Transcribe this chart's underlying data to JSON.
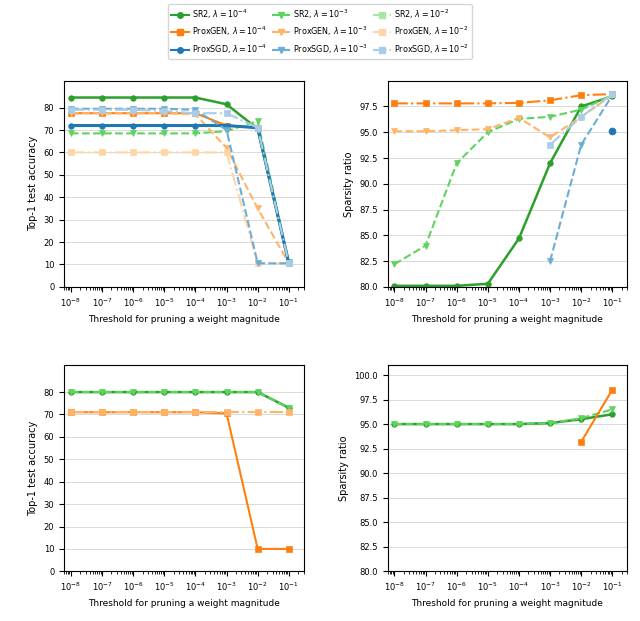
{
  "thresholds": [
    1e-08,
    1e-07,
    1e-06,
    1e-05,
    0.0001,
    0.001,
    0.01,
    0.1
  ],
  "colors": {
    "SR2_1e-4": "#2ca02c",
    "SR2_1e-3": "#5fd35f",
    "SR2_1e-2": "#a8e6a8",
    "ProxGEN_1e-4": "#ff7f0e",
    "ProxGEN_1e-3": "#ffb46a",
    "ProxGEN_1e-2": "#ffd4a8",
    "ProxSGD_1e-4": "#1f77b4",
    "ProxSGD_1e-3": "#6aaed6",
    "ProxSGD_1e-2": "#a8cde8"
  },
  "top1_upper": {
    "SR2_1e-4": [
      84.5,
      84.5,
      84.5,
      84.5,
      84.5,
      81.5,
      70.5,
      10.5
    ],
    "SR2_1e-3": [
      68.5,
      68.5,
      68.5,
      68.5,
      68.5,
      69.5,
      74.0,
      11.0
    ],
    "ProxGEN_1e-4": [
      77.5,
      77.5,
      77.5,
      77.5,
      77.5,
      72.0,
      71.0,
      10.5
    ],
    "ProxGEN_1e-3": [
      77.5,
      77.5,
      77.5,
      77.5,
      77.0,
      62.0,
      35.0,
      10.5
    ],
    "ProxGEN_1e-2": [
      60.0,
      60.0,
      60.0,
      60.0,
      60.0,
      60.0,
      10.5,
      10.5
    ],
    "ProxSGD_1e-4": [
      72.0,
      72.0,
      72.0,
      72.0,
      72.0,
      72.0,
      71.0,
      10.5
    ],
    "ProxSGD_1e-3": [
      79.5,
      79.5,
      79.5,
      79.5,
      79.0,
      70.0,
      10.5,
      10.5
    ],
    "ProxSGD_1e-2": [
      79.0,
      79.0,
      79.0,
      78.5,
      77.5,
      77.5,
      71.0,
      10.5
    ]
  },
  "sparsity_upper": {
    "SR2_1e-4": [
      80.1,
      80.1,
      80.1,
      80.3,
      84.7,
      92.0,
      97.5,
      98.5
    ],
    "SR2_1e-3": [
      82.2,
      84.0,
      92.0,
      95.0,
      96.3,
      96.5,
      97.2,
      98.6
    ],
    "ProxGEN_1e-4": [
      97.8,
      97.8,
      97.8,
      97.8,
      97.85,
      98.1,
      98.6,
      98.7
    ],
    "ProxGEN_1e-3": [
      95.1,
      95.1,
      95.2,
      95.3,
      96.4,
      94.5,
      96.5,
      98.6
    ],
    "ProxSGD_1e-4": [
      null,
      null,
      null,
      null,
      null,
      null,
      null,
      95.1
    ],
    "ProxSGD_1e-3": [
      null,
      null,
      null,
      null,
      null,
      82.5,
      93.8,
      98.6
    ],
    "ProxSGD_1e-2": [
      null,
      null,
      null,
      null,
      null,
      93.8,
      96.5,
      98.7
    ]
  },
  "top1_lower": {
    "SR2_1e-4": [
      80.0,
      80.0,
      80.0,
      80.0,
      80.0,
      80.0,
      80.0,
      73.0
    ],
    "SR2_1e-3": [
      80.0,
      80.0,
      80.0,
      80.0,
      80.0,
      80.0,
      80.0,
      73.0
    ],
    "ProxGEN_1e-4": [
      71.0,
      71.0,
      71.0,
      71.0,
      71.0,
      70.5,
      10.0,
      10.0
    ],
    "ProxGEN_1e-3": [
      71.0,
      71.0,
      71.0,
      71.0,
      71.0,
      71.0,
      71.0,
      71.0
    ]
  },
  "sparsity_lower": {
    "SR2_1e-4": [
      95.0,
      95.0,
      95.0,
      95.0,
      95.0,
      95.1,
      95.5,
      96.0
    ],
    "SR2_1e-3": [
      95.0,
      95.0,
      95.0,
      95.0,
      95.0,
      95.1,
      95.6,
      96.5
    ],
    "ProxGEN_1e-4": [
      null,
      null,
      null,
      null,
      null,
      null,
      93.2,
      98.5
    ]
  }
}
